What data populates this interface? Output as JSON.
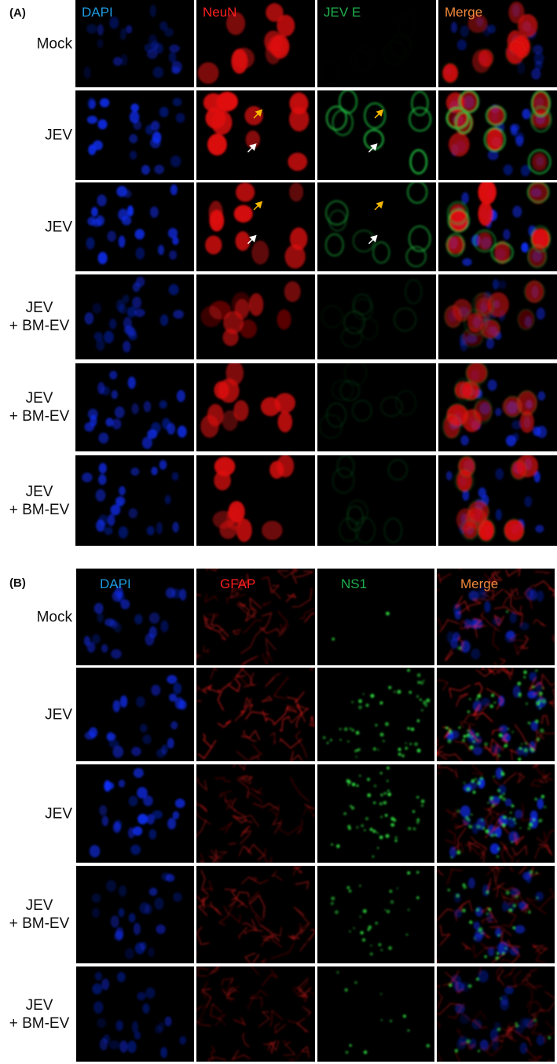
{
  "panel_a": {
    "label": "(A)",
    "columns": [
      {
        "name": "DAPI",
        "color": "#1e9be0"
      },
      {
        "name": "NeuN",
        "color": "#ff1f1f"
      },
      {
        "name": "JEV E",
        "color": "#1fb04c"
      },
      {
        "name": "Merge",
        "color": "#f0883c"
      }
    ],
    "rows": [
      {
        "line1": "Mock",
        "line2": ""
      },
      {
        "line1": "JEV",
        "line2": ""
      },
      {
        "line1": "JEV",
        "line2": ""
      },
      {
        "line1": "JEV",
        "line2": "+ BM-EV"
      },
      {
        "line1": "JEV",
        "line2": "+ BM-EV"
      },
      {
        "line1": "JEV",
        "line2": "+ BM-EV"
      }
    ],
    "arrow_colors": {
      "yellow": "#f5b800",
      "white": "#ffffff"
    }
  },
  "panel_b": {
    "label": "(B)",
    "columns": [
      {
        "name": "DAPI",
        "color": "#1e9be0"
      },
      {
        "name": "GFAP",
        "color": "#ff1f1f"
      },
      {
        "name": "NS1",
        "color": "#1fb04c"
      },
      {
        "name": "Merge",
        "color": "#f0883c"
      }
    ],
    "rows": [
      {
        "line1": "Mock",
        "line2": ""
      },
      {
        "line1": "JEV",
        "line2": ""
      },
      {
        "line1": "JEV",
        "line2": ""
      },
      {
        "line1": "JEV",
        "line2": "+ BM-EV"
      },
      {
        "line1": "JEV",
        "line2": "+ BM-EV"
      }
    ]
  }
}
